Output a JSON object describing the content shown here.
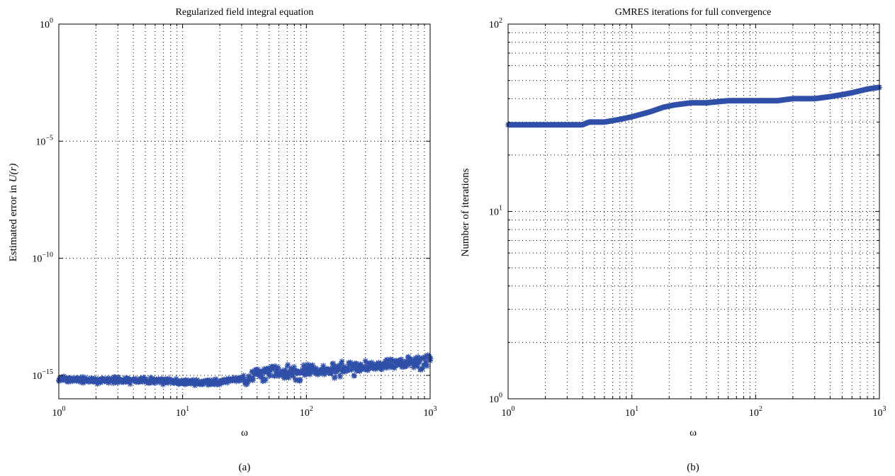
{
  "chart_data": [
    {
      "type": "scatter",
      "title": "Regularized field integral equation",
      "xlabel": "ω",
      "ylabel_prefix": "Estimated error in ",
      "ylabel_math": "U(r)",
      "panel_label": "(a)",
      "x_scale": "log",
      "y_scale": "log",
      "xlim": [
        1,
        1000
      ],
      "ylim": [
        1e-16,
        1
      ],
      "grid": true,
      "marker": "asterisk",
      "marker_color": "#2f4fa8",
      "x_ticks": [
        {
          "base": "10",
          "exp": "0"
        },
        {
          "base": "10",
          "exp": "1"
        },
        {
          "base": "10",
          "exp": "2"
        },
        {
          "base": "10",
          "exp": "3"
        }
      ],
      "y_ticks": [
        {
          "base": "10",
          "exp": "0",
          "value": 1
        },
        {
          "base": "10",
          "exp": "−5",
          "value": 1e-05
        },
        {
          "base": "10",
          "exp": "−10",
          "value": 1e-10
        },
        {
          "base": "10",
          "exp": "−15",
          "value": 1e-15
        }
      ],
      "series": [
        {
          "x": [
            1,
            1.5,
            2,
            3,
            5,
            8,
            12,
            18,
            25,
            35,
            45,
            60,
            80,
            100,
            130,
            170,
            220,
            280,
            350,
            450,
            550,
            650,
            750,
            850,
            1000
          ],
          "y": [
            7e-16,
            6.5e-16,
            6e-16,
            6e-16,
            6e-16,
            5.5e-16,
            5e-16,
            5e-16,
            6e-16,
            8e-16,
            1.4e-15,
            1.6e-15,
            1.5e-15,
            1.8e-15,
            1.7e-15,
            2e-15,
            2.2e-15,
            2.5e-15,
            2.8e-15,
            3e-15,
            3.2e-15,
            3.5e-15,
            3.8e-15,
            4e-15,
            4.3e-15
          ]
        }
      ]
    },
    {
      "type": "scatter",
      "title": "GMRES iterations for full convergence",
      "xlabel": "ω",
      "ylabel": "Number of iterations",
      "panel_label": "(b)",
      "x_scale": "log",
      "y_scale": "log",
      "xlim": [
        1,
        1000
      ],
      "ylim": [
        1,
        100
      ],
      "grid": true,
      "marker": "asterisk",
      "marker_color": "#2f4fa8",
      "x_ticks": [
        {
          "base": "10",
          "exp": "0"
        },
        {
          "base": "10",
          "exp": "1"
        },
        {
          "base": "10",
          "exp": "2"
        },
        {
          "base": "10",
          "exp": "3"
        }
      ],
      "y_ticks": [
        {
          "base": "10",
          "exp": "2",
          "value": 100
        },
        {
          "base": "10",
          "exp": "1",
          "value": 10
        },
        {
          "base": "10",
          "exp": "0",
          "value": 1
        }
      ],
      "series": [
        {
          "x": [
            1,
            2,
            3,
            4,
            4.5,
            6,
            8,
            10,
            14,
            18,
            22,
            30,
            40,
            60,
            100,
            150,
            200,
            300,
            400,
            500,
            600,
            800,
            1000
          ],
          "y": [
            29,
            29,
            29,
            29,
            30,
            30,
            31,
            32,
            34,
            36,
            37,
            38,
            38,
            39,
            39,
            39,
            40,
            40,
            41,
            42,
            43,
            45,
            46
          ]
        }
      ]
    }
  ]
}
